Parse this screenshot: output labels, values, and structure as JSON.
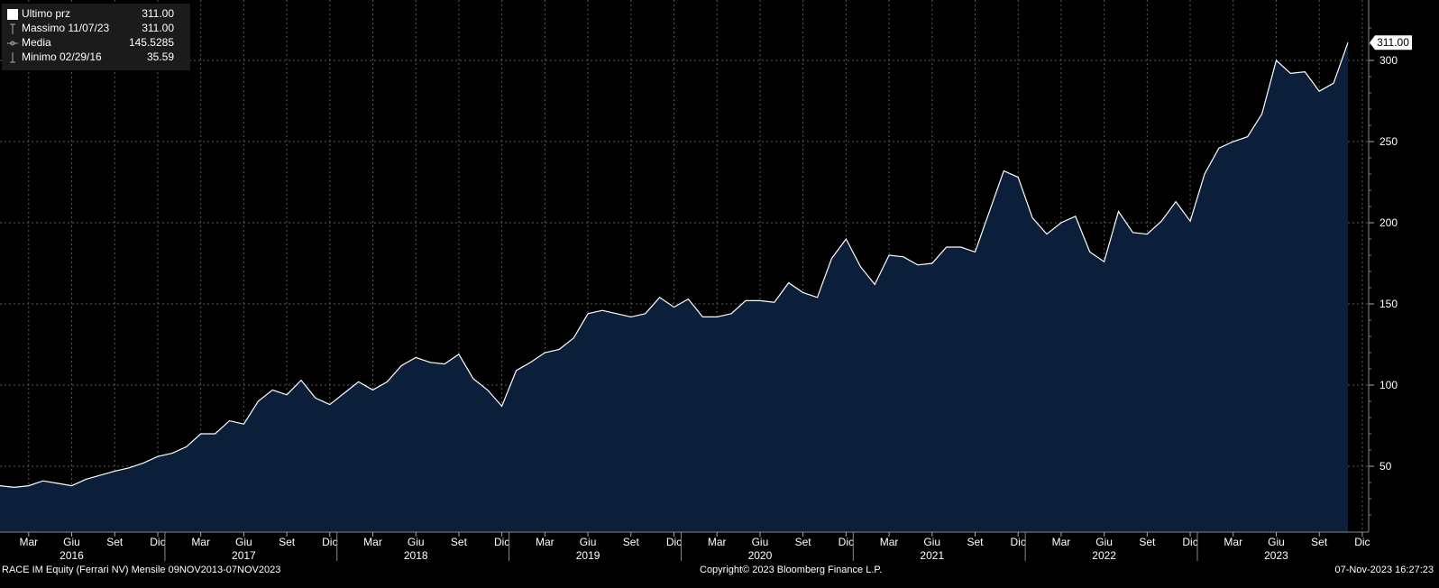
{
  "legend": {
    "rows": [
      {
        "label": "Ultimo prz",
        "value": "311.00"
      },
      {
        "label": "Massimo 11/07/23",
        "value": "311.00"
      },
      {
        "label": "Media",
        "value": "145.5285"
      },
      {
        "label": "Minimo 02/29/16",
        "value": "35.59"
      }
    ]
  },
  "footer": {
    "left": "RACE IM Equity (Ferrari NV)  Mensile 09NOV2013-07NOV2023",
    "center": "Copyright© 2023 Bloomberg Finance L.P.",
    "right": "07-Nov-2023 16:27:23"
  },
  "colors": {
    "background": "#000000",
    "area_fill": "#0b1f3a",
    "line": "#ffffff",
    "grid": "#5a5a5a",
    "legend_bg": "#1b1b1b"
  },
  "chart_data": {
    "type": "area",
    "last_price_label": "311.00",
    "y_ticks": [
      50,
      100,
      150,
      200,
      250,
      300
    ],
    "ylim": [
      15,
      330
    ],
    "grid": true,
    "x_month_labels": [
      "Mar",
      "Giu",
      "Set",
      "Dic",
      "Mar",
      "Giu",
      "Set",
      "Dic",
      "Mar",
      "Giu",
      "Set",
      "Dic",
      "Mar",
      "Giu",
      "Set",
      "Dic",
      "Mar",
      "Giu",
      "Set",
      "Dic",
      "Mar",
      "Giu",
      "Set",
      "Dic",
      "Mar",
      "Giu",
      "Set",
      "Dic",
      "Mar",
      "Giu",
      "Set",
      "Dic"
    ],
    "x_year_labels": [
      "2016",
      "2017",
      "2018",
      "2019",
      "2020",
      "2021",
      "2022",
      "2023"
    ],
    "x": [
      "2016-01",
      "2016-02",
      "2016-03",
      "2016-04",
      "2016-05",
      "2016-06",
      "2016-07",
      "2016-08",
      "2016-09",
      "2016-10",
      "2016-11",
      "2016-12",
      "2017-01",
      "2017-02",
      "2017-03",
      "2017-04",
      "2017-05",
      "2017-06",
      "2017-07",
      "2017-08",
      "2017-09",
      "2017-10",
      "2017-11",
      "2017-12",
      "2018-01",
      "2018-02",
      "2018-03",
      "2018-04",
      "2018-05",
      "2018-06",
      "2018-07",
      "2018-08",
      "2018-09",
      "2018-10",
      "2018-11",
      "2018-12",
      "2019-01",
      "2019-02",
      "2019-03",
      "2019-04",
      "2019-05",
      "2019-06",
      "2019-07",
      "2019-08",
      "2019-09",
      "2019-10",
      "2019-11",
      "2019-12",
      "2020-01",
      "2020-02",
      "2020-03",
      "2020-04",
      "2020-05",
      "2020-06",
      "2020-07",
      "2020-08",
      "2020-09",
      "2020-10",
      "2020-11",
      "2020-12",
      "2021-01",
      "2021-02",
      "2021-03",
      "2021-04",
      "2021-05",
      "2021-06",
      "2021-07",
      "2021-08",
      "2021-09",
      "2021-10",
      "2021-11",
      "2021-12",
      "2022-01",
      "2022-02",
      "2022-03",
      "2022-04",
      "2022-05",
      "2022-06",
      "2022-07",
      "2022-08",
      "2022-09",
      "2022-10",
      "2022-11",
      "2022-12",
      "2023-01",
      "2023-02",
      "2023-03",
      "2023-04",
      "2023-05",
      "2023-06",
      "2023-07",
      "2023-08",
      "2023-09",
      "2023-10",
      "2023-11"
    ],
    "series": [
      {
        "values": [
          38,
          37,
          38,
          41,
          39.5,
          38,
          42,
          44.5,
          47,
          49,
          52,
          56,
          58,
          62,
          70,
          70,
          78,
          76,
          90,
          97,
          94,
          103,
          92,
          88,
          95,
          102,
          97,
          102,
          112,
          117,
          114,
          113,
          119,
          104,
          97,
          87,
          109,
          114,
          120,
          122,
          129,
          144,
          146,
          144,
          142,
          144,
          154,
          148,
          153,
          142,
          142,
          144,
          152,
          152,
          151,
          163,
          157,
          154,
          178,
          190,
          173,
          162,
          180,
          179,
          174,
          175,
          185,
          185,
          182,
          207,
          232,
          228,
          203,
          193,
          200,
          204,
          182,
          176,
          207,
          194,
          193,
          201,
          213,
          201,
          230,
          246,
          250,
          253,
          267,
          300,
          292,
          293,
          281,
          286,
          311
        ]
      }
    ]
  }
}
